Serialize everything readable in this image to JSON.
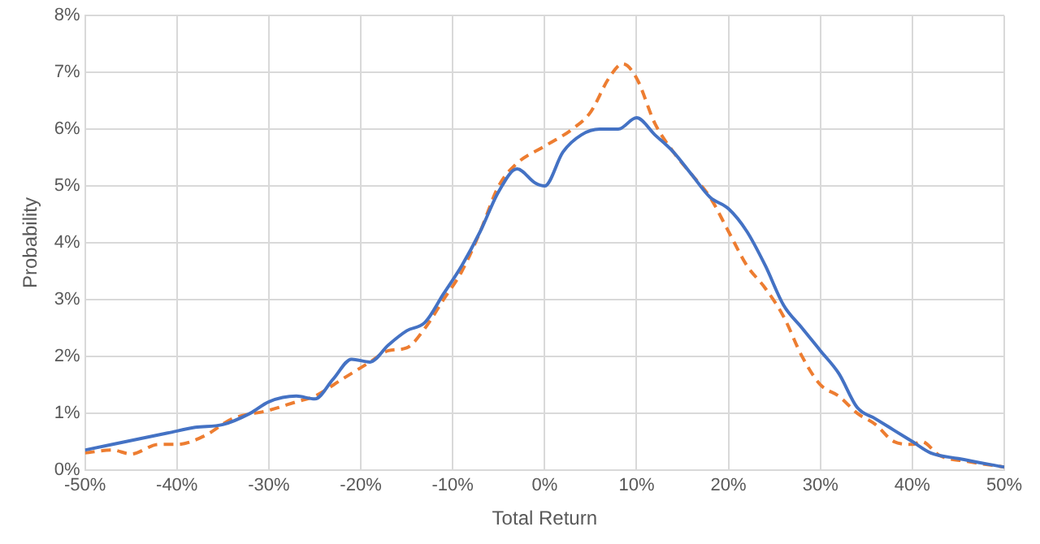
{
  "chart_data": {
    "type": "line",
    "xlabel": "Total Return",
    "ylabel": "Probability",
    "grid": true,
    "marker": "none",
    "xlim": [
      -50,
      50
    ],
    "xticks": [
      {
        "value": -50,
        "label": "-50%"
      },
      {
        "value": -40,
        "label": "-40%"
      },
      {
        "value": -30,
        "label": "-30%"
      },
      {
        "value": -20,
        "label": "-20%"
      },
      {
        "value": -10,
        "label": "-10%"
      },
      {
        "value": 0,
        "label": "0%"
      },
      {
        "value": 10,
        "label": "10%"
      },
      {
        "value": 20,
        "label": "20%"
      },
      {
        "value": 30,
        "label": "30%"
      },
      {
        "value": 40,
        "label": "40%"
      },
      {
        "value": 50,
        "label": "50%"
      }
    ],
    "ylim": [
      0,
      8
    ],
    "yticks": [
      {
        "value": 0,
        "label": "0%"
      },
      {
        "value": 1,
        "label": "1%"
      },
      {
        "value": 2,
        "label": "2%"
      },
      {
        "value": 3,
        "label": "3%"
      },
      {
        "value": 4,
        "label": "4%"
      },
      {
        "value": 5,
        "label": "5%"
      },
      {
        "value": 6,
        "label": "6%"
      },
      {
        "value": 7,
        "label": "7%"
      },
      {
        "value": 8,
        "label": "8%"
      }
    ],
    "series": [
      {
        "color": "#4472c4",
        "line_style": "solid",
        "x": [
          -50,
          -47,
          -44,
          -41,
          -38,
          -35,
          -32,
          -30,
          -27,
          -25,
          -23,
          -21,
          -19,
          -17,
          -15,
          -13,
          -11,
          -9,
          -7,
          -5,
          -3,
          -1,
          0,
          2,
          4,
          6,
          8,
          10,
          12,
          14,
          16,
          18,
          20,
          22,
          24,
          26,
          28,
          30,
          32,
          34,
          36,
          38,
          40,
          42,
          45,
          50
        ],
        "values": [
          0.35,
          0.45,
          0.55,
          0.65,
          0.75,
          0.8,
          1.0,
          1.2,
          1.3,
          1.25,
          1.6,
          1.95,
          1.9,
          2.2,
          2.45,
          2.6,
          3.1,
          3.6,
          4.2,
          4.9,
          5.3,
          5.05,
          5.0,
          5.6,
          5.9,
          6.0,
          6.0,
          6.2,
          5.9,
          5.6,
          5.2,
          4.8,
          4.6,
          4.2,
          3.6,
          2.9,
          2.5,
          2.1,
          1.7,
          1.1,
          0.9,
          0.7,
          0.5,
          0.3,
          0.2,
          0.05
        ]
      },
      {
        "color": "#ed7d31",
        "line_style": "dashed",
        "x": [
          -50,
          -47,
          -45,
          -42,
          -40,
          -37,
          -34,
          -30,
          -27,
          -25,
          -22,
          -19,
          -17,
          -15,
          -13,
          -11,
          -9,
          -7,
          -5,
          -3,
          0,
          3,
          5,
          7,
          8.5,
          10,
          12,
          14,
          16,
          18,
          20,
          22,
          24,
          26,
          28,
          30,
          32,
          34,
          36,
          38,
          40,
          41,
          43,
          46,
          50
        ],
        "values": [
          0.3,
          0.35,
          0.28,
          0.45,
          0.45,
          0.6,
          0.9,
          1.05,
          1.2,
          1.3,
          1.6,
          1.9,
          2.1,
          2.15,
          2.5,
          3.0,
          3.5,
          4.2,
          5.0,
          5.4,
          5.7,
          6.0,
          6.3,
          6.9,
          7.15,
          6.9,
          6.1,
          5.6,
          5.2,
          4.8,
          4.2,
          3.6,
          3.2,
          2.7,
          2.0,
          1.5,
          1.3,
          1.0,
          0.8,
          0.5,
          0.45,
          0.5,
          0.25,
          0.15,
          0.05
        ]
      }
    ]
  }
}
